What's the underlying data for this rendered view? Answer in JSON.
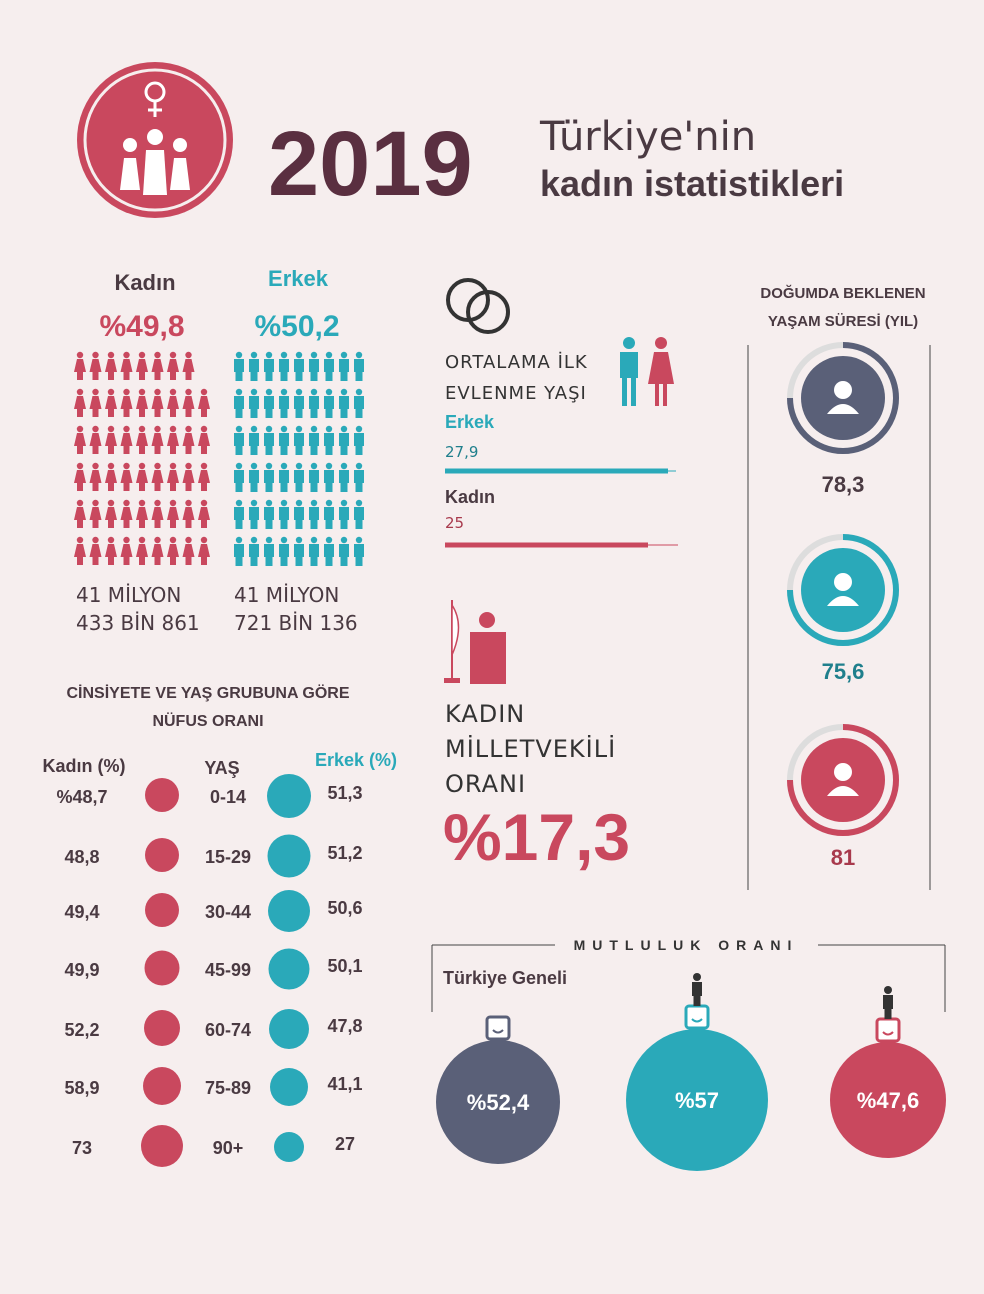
{
  "header": {
    "year": "2019",
    "line1": "Türkiye'nin",
    "line2": "kadın istatistikleri"
  },
  "population": {
    "women": {
      "label": "Kadın",
      "percent": "%49,8",
      "count_line1": "41 MİLYON",
      "count_line2": "433 BİN 861"
    },
    "men": {
      "label": "Erkek",
      "percent": "%50,2",
      "count_line1": "41 MİLYON",
      "count_line2": "721 BİN 136"
    }
  },
  "marriage": {
    "title_line1": "ORTALAMA İLK",
    "title_line2": "EVLENME YAŞI",
    "men": {
      "label": "Erkek",
      "value": "27,9"
    },
    "women": {
      "label": "Kadın",
      "value": "25"
    }
  },
  "parliament": {
    "line1": "KADIN",
    "line2": "MİLLETVEKİLİ",
    "line3": "ORANI",
    "value": "%17,3"
  },
  "life_expectancy": {
    "title_line1": "DOĞUMDA BEKLENEN",
    "title_line2": "YAŞAM SÜRESİ (YIL)",
    "values": [
      "78,3",
      "75,6",
      "81"
    ]
  },
  "age_groups": {
    "title_line1": "CİNSİYETE VE YAŞ GRUBUNA GÖRE",
    "title_line2": "NÜFUS ORANI",
    "headers": [
      "Kadın (%)",
      "YAŞ",
      "Erkek (%)"
    ],
    "rows": [
      [
        "%48,7",
        "0-14",
        "51,3"
      ],
      [
        "48,8",
        "15-29",
        "51,2"
      ],
      [
        "49,4",
        "30-44",
        "50,6"
      ],
      [
        "49,9",
        "45-99",
        "50,1"
      ],
      [
        "52,2",
        "60-74",
        "47,8"
      ],
      [
        "58,9",
        "75-89",
        "41,1"
      ],
      [
        "73",
        "90+",
        "27"
      ]
    ]
  },
  "happiness": {
    "title": "MUTLULUK ORANI",
    "general_label": "Türkiye Geneli",
    "values": [
      "%52,4",
      "%57",
      "%47,6"
    ]
  }
}
